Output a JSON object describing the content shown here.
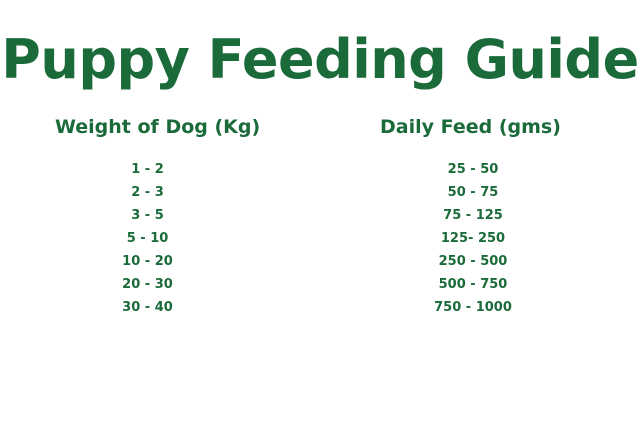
{
  "title": "Puppy Feeding Guide",
  "columns": {
    "weight": {
      "header": "Weight of Dog (Kg)",
      "rows": [
        "1 - 2",
        "2 - 3",
        "3 - 5",
        "5 - 10",
        "10 - 20",
        "20 - 30",
        "30 - 40"
      ]
    },
    "feed": {
      "header": "Daily Feed (gms)",
      "rows": [
        "25 - 50",
        "50 - 75",
        "75 - 125",
        "125- 250",
        "250 - 500",
        "500 - 750",
        "750 - 1000"
      ]
    }
  },
  "colors": {
    "text": "#1b6b3a",
    "background": "#ffffff"
  }
}
